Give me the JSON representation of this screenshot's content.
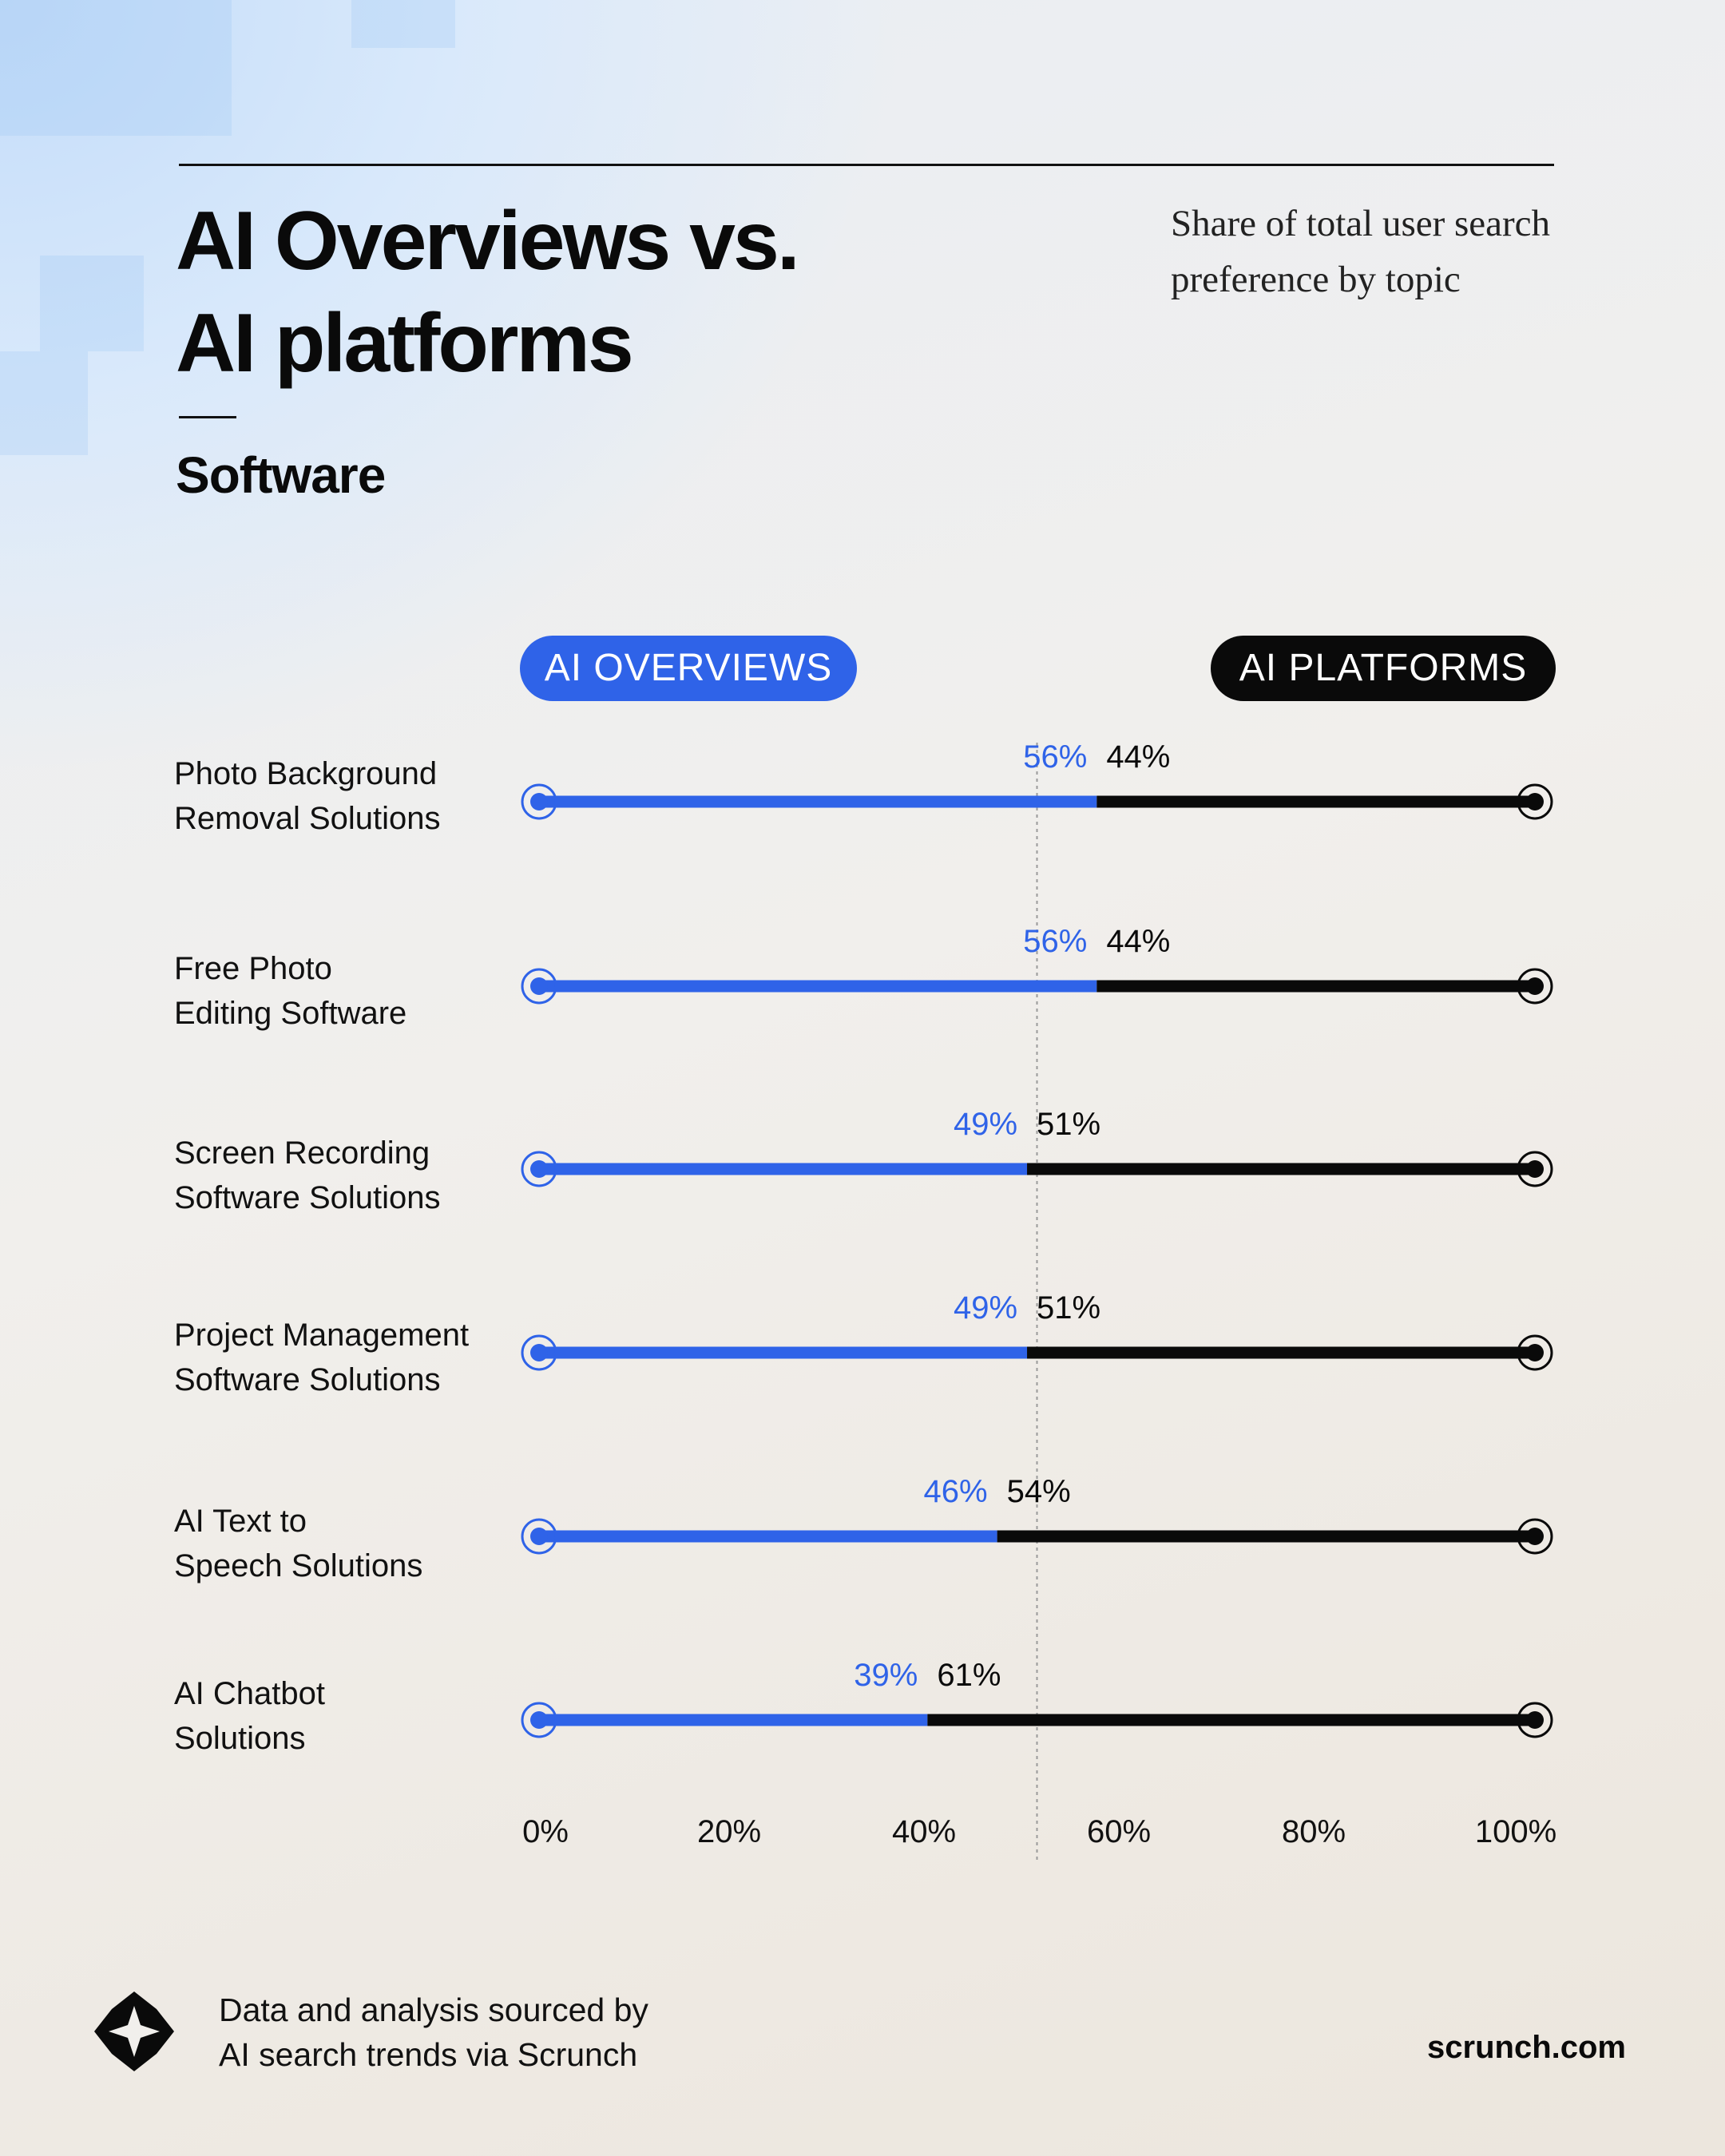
{
  "header": {
    "title_line1": "AI Overviews vs.",
    "title_line2": "AI platforms",
    "subtitle_line1": "Share of total user search",
    "subtitle_line2": "preference by topic",
    "section": "Software"
  },
  "legend": {
    "ai_overviews": "AI OVERVIEWS",
    "ai_platforms": "AI PLATFORMS"
  },
  "colors": {
    "ai_overviews": "#2f63e8",
    "ai_platforms": "#0a0a0a"
  },
  "chart_data": {
    "type": "bar",
    "orientation": "horizontal",
    "stacked": true,
    "title": "AI Overviews vs. AI platforms",
    "subtitle": "Share of total user search preference by topic",
    "xlim": [
      0,
      100
    ],
    "reference_line": 50,
    "categories": [
      [
        "Photo Background",
        "Removal Solutions"
      ],
      [
        "Free Photo",
        "Editing Software"
      ],
      [
        "Screen Recording",
        "Software Solutions"
      ],
      [
        "Project Management",
        "Software Solutions"
      ],
      [
        "AI Text to",
        "Speech Solutions"
      ],
      [
        "AI Chatbot",
        "Solutions"
      ]
    ],
    "series": [
      {
        "name": "AI OVERVIEWS",
        "values": [
          56,
          56,
          49,
          49,
          46,
          39
        ],
        "labels": [
          "56%",
          "56%",
          "49%",
          "49%",
          "46%",
          "39%"
        ]
      },
      {
        "name": "AI PLATFORMS",
        "values": [
          44,
          44,
          51,
          51,
          54,
          61
        ],
        "labels": [
          "44%",
          "44%",
          "51%",
          "51%",
          "54%",
          "61%"
        ]
      }
    ],
    "x_ticks": [
      "0%",
      "20%",
      "40%",
      "60%",
      "80%",
      "100%"
    ]
  },
  "footer": {
    "source_line1": "Data and analysis sourced by",
    "source_line2": "AI search trends via Scrunch",
    "site": "scrunch.com"
  }
}
